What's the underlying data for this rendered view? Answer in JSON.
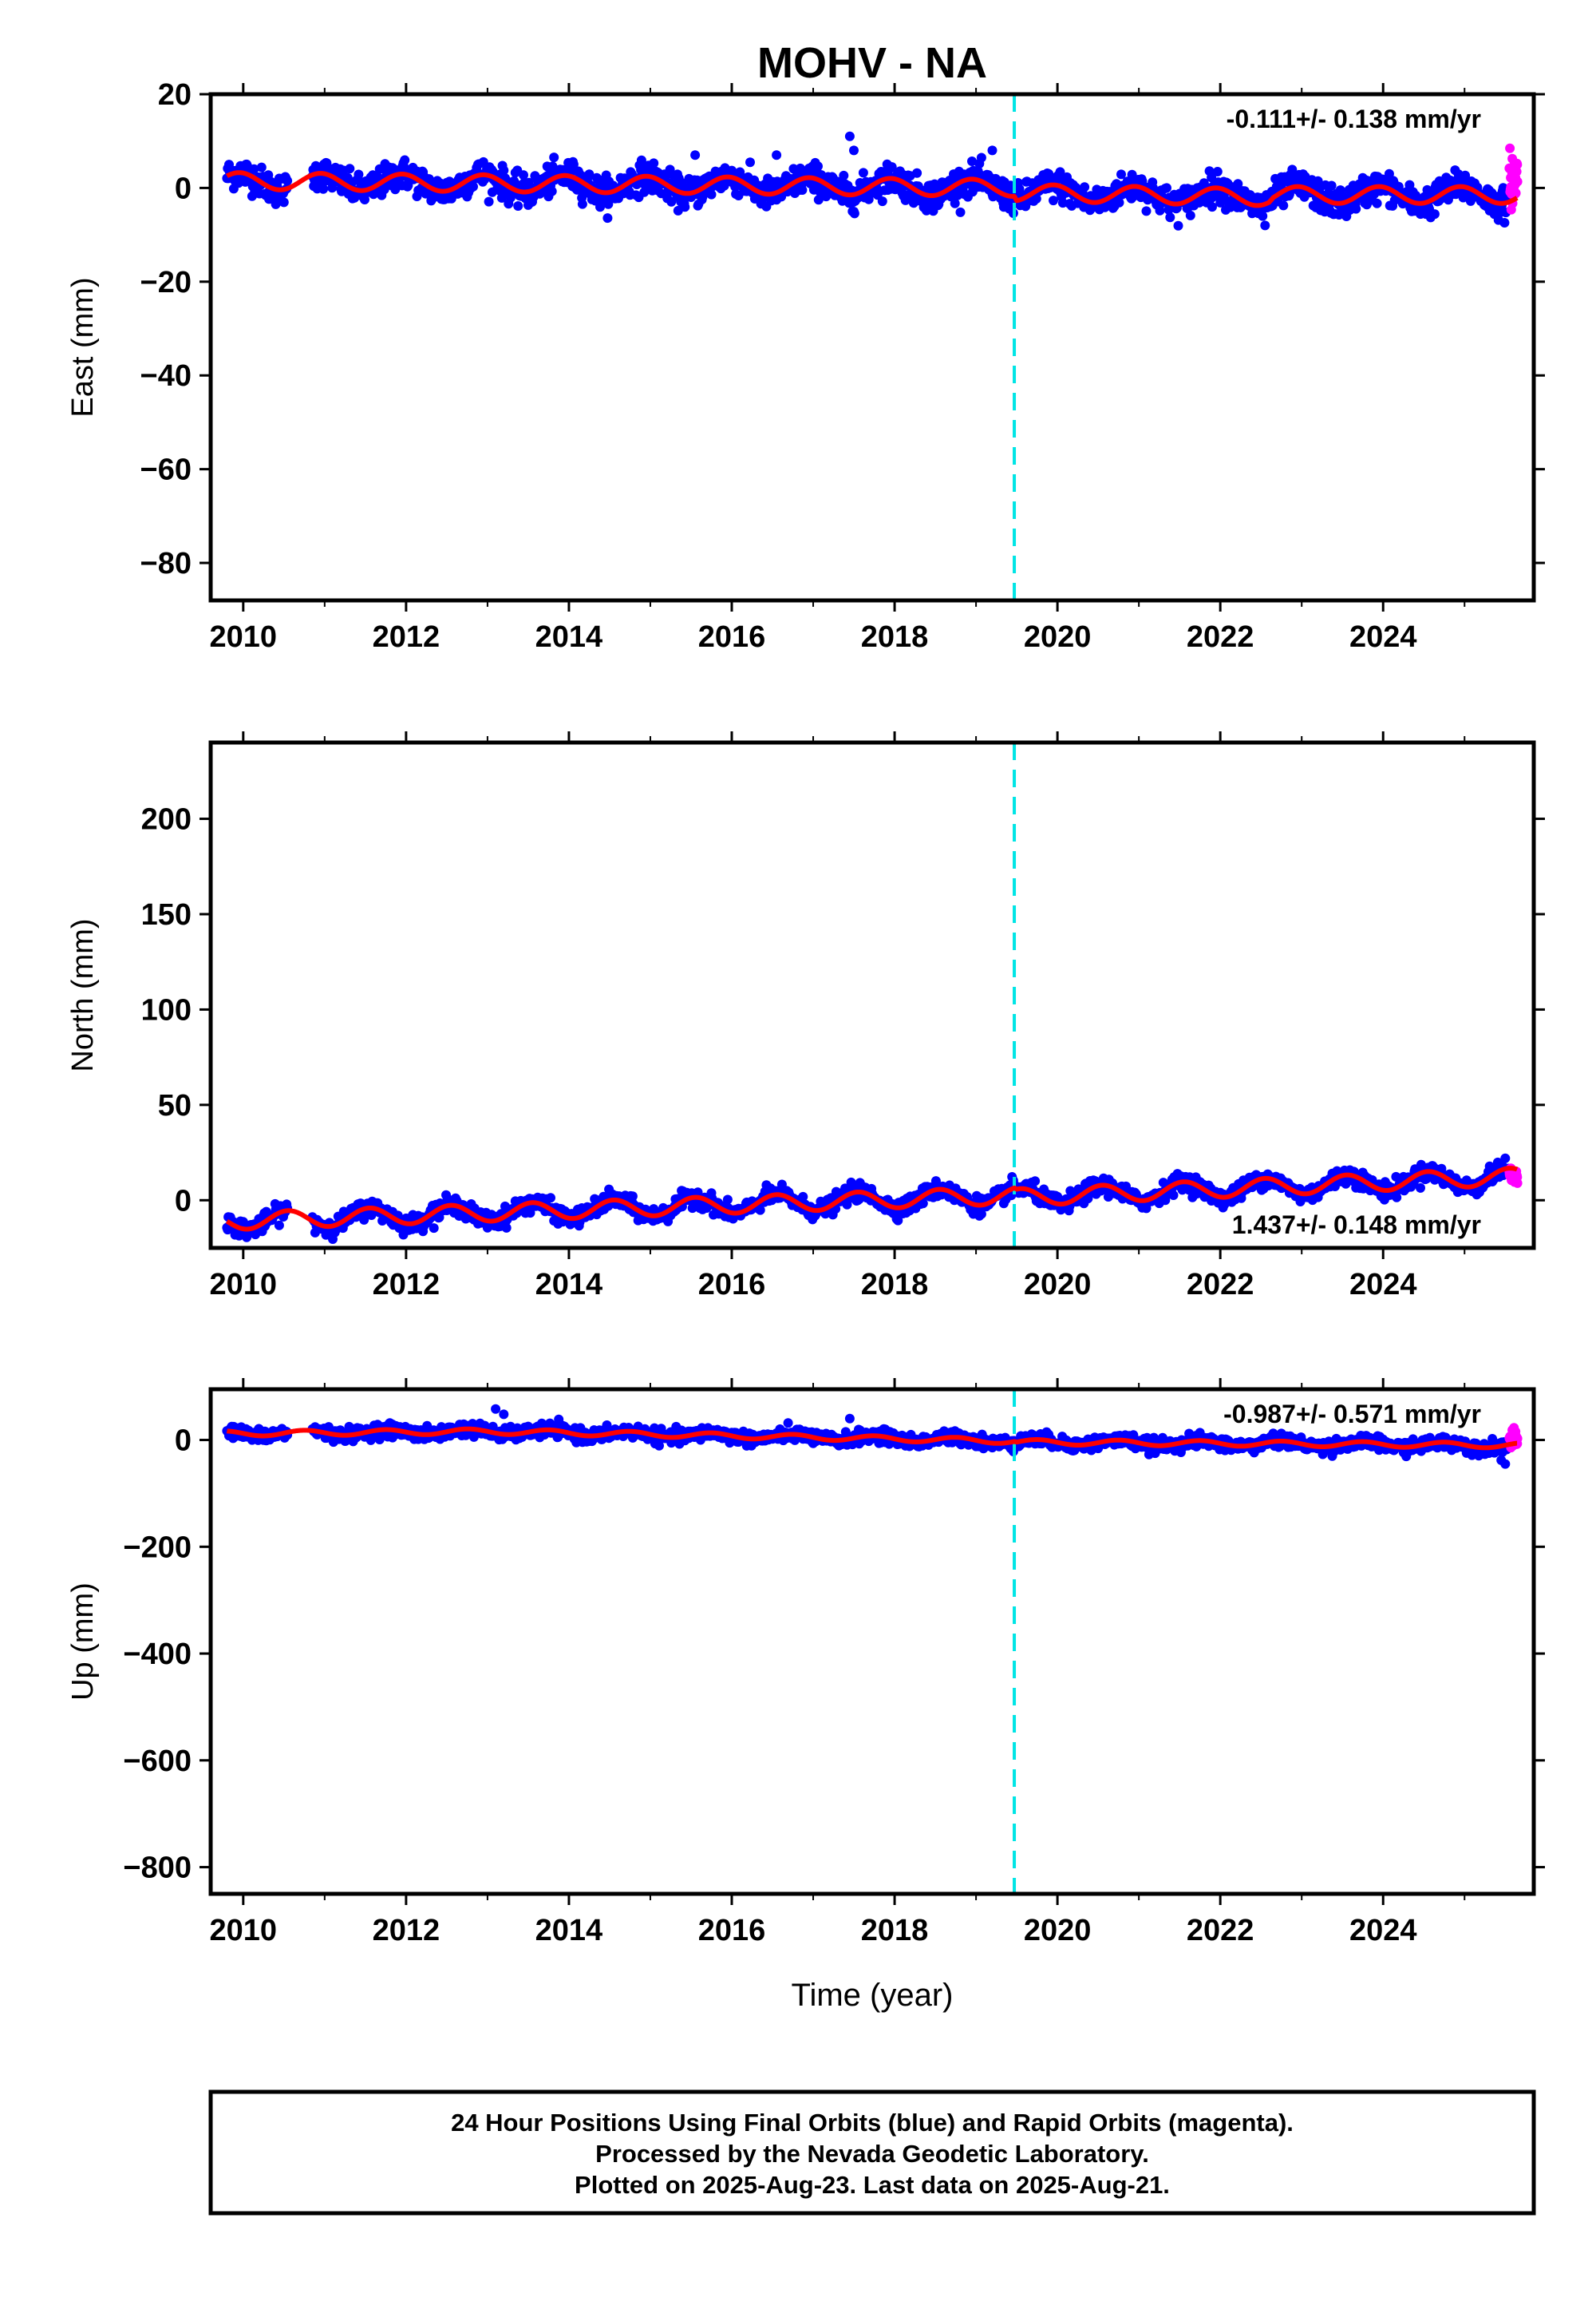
{
  "title": "MOHV - NA",
  "colors": {
    "final_orbits": "#0000ff",
    "rapid_orbits": "#ff00ff",
    "model": "#ff0000",
    "event_line": "#00e5e5",
    "frame": "#000000"
  },
  "chart_data": [
    {
      "type": "scatter",
      "panel": "east",
      "ylabel": "East (mm)",
      "xlabel": "",
      "xlim": [
        2009.6,
        2025.85
      ],
      "ylim": [
        -88,
        20
      ],
      "yticks": [
        20,
        0,
        -20,
        -40,
        -60,
        -80
      ],
      "ytick_labels": [
        "20",
        "0",
        "−20",
        "−40",
        "−60",
        "−80"
      ],
      "xticks": [
        2010,
        2012,
        2014,
        2016,
        2018,
        2020,
        2022,
        2024
      ],
      "xtick_labels": [
        "2010",
        "2012",
        "2014",
        "2016",
        "2018",
        "2020",
        "2022",
        "2024"
      ],
      "show_xtick_labels": true,
      "rate_label": "-0.111+/- 0.138 mm/yr",
      "rate_position": "top-right",
      "event_line_x": 2019.47,
      "series": [
        {
          "role": "final",
          "x_range": [
            2009.8,
            2025.55
          ],
          "trend": [
            [
              2009.8,
              1.5
            ],
            [
              2019.47,
              0.0
            ],
            [
              2019.5,
              -1.0
            ],
            [
              2022.6,
              -2.0
            ],
            [
              2022.65,
              -1.5
            ],
            [
              2025.55,
              -1.5
            ]
          ],
          "annual_amplitude": 1.8,
          "annual_phase": 2009.7,
          "scatter": 1.6
        },
        {
          "role": "rapid",
          "x_range": [
            2025.55,
            2025.65
          ],
          "trend": [
            [
              2025.55,
              2.0
            ],
            [
              2025.65,
              2.0
            ]
          ],
          "annual_amplitude": 0,
          "annual_phase": 2009.7,
          "scatter": 3.0
        },
        {
          "role": "model",
          "x_range": [
            2009.8,
            2025.65
          ],
          "trend": [
            [
              2009.8,
              1.5
            ],
            [
              2019.47,
              0.0
            ],
            [
              2019.5,
              -1.0
            ],
            [
              2022.6,
              -2.0
            ],
            [
              2022.65,
              -1.5
            ],
            [
              2025.65,
              -1.5
            ]
          ],
          "annual_amplitude": 1.8,
          "annual_phase": 2009.7
        }
      ],
      "outliers": [
        [
          2017.45,
          11
        ],
        [
          2017.5,
          8
        ],
        [
          2019.2,
          8
        ],
        [
          2016.55,
          7
        ],
        [
          2015.55,
          7
        ],
        [
          2022.55,
          -8
        ],
        [
          2022.52,
          -6
        ]
      ]
    },
    {
      "type": "scatter",
      "panel": "north",
      "ylabel": "North (mm)",
      "xlabel": "",
      "xlim": [
        2009.6,
        2025.85
      ],
      "ylim": [
        -25,
        240
      ],
      "yticks": [
        200,
        150,
        100,
        50,
        0
      ],
      "ytick_labels": [
        "200",
        "150",
        "100",
        "50",
        "0"
      ],
      "xticks": [
        2010,
        2012,
        2014,
        2016,
        2018,
        2020,
        2022,
        2024
      ],
      "xtick_labels": [
        "2010",
        "2012",
        "2014",
        "2016",
        "2018",
        "2020",
        "2022",
        "2024"
      ],
      "show_xtick_labels": true,
      "rate_label": "1.437+/- 0.148 mm/yr",
      "rate_position": "bottom-right",
      "event_line_x": 2019.47,
      "series": [
        {
          "role": "final",
          "x_range": [
            2009.8,
            2025.55
          ],
          "trend": [
            [
              2009.8,
              -11.0
            ],
            [
              2019.47,
              2.5
            ],
            [
              2019.5,
              1.5
            ],
            [
              2025.55,
              12.0
            ]
          ],
          "annual_amplitude": 4.5,
          "annual_phase": 2009.3,
          "scatter": 2.2
        },
        {
          "role": "rapid",
          "x_range": [
            2025.55,
            2025.65
          ],
          "trend": [
            [
              2025.55,
              13.0
            ],
            [
              2025.65,
              13.0
            ]
          ],
          "annual_amplitude": 0,
          "annual_phase": 2009.3,
          "scatter": 1.5
        },
        {
          "role": "model",
          "x_range": [
            2009.8,
            2025.65
          ],
          "trend": [
            [
              2009.8,
              -11.0
            ],
            [
              2019.47,
              2.5
            ],
            [
              2019.5,
              1.5
            ],
            [
              2025.65,
              12.5
            ]
          ],
          "annual_amplitude": 4.5,
          "annual_phase": 2009.3
        }
      ],
      "outliers": [
        [
          2025.5,
          22
        ],
        [
          2024.6,
          18
        ]
      ]
    },
    {
      "type": "scatter",
      "panel": "up",
      "ylabel": "Up (mm)",
      "xlabel": "Time (year)",
      "xlim": [
        2009.6,
        2025.85
      ],
      "ylim": [
        -850,
        95
      ],
      "yticks": [
        0,
        -200,
        -400,
        -600,
        -800
      ],
      "ytick_labels": [
        "0",
        "−200",
        "−400",
        "−600",
        "−800"
      ],
      "xticks": [
        2010,
        2012,
        2014,
        2016,
        2018,
        2020,
        2022,
        2024
      ],
      "xtick_labels": [
        "2010",
        "2012",
        "2014",
        "2016",
        "2018",
        "2020",
        "2022",
        "2024"
      ],
      "show_xtick_labels": true,
      "rate_label": "-0.987+/- 0.571 mm/yr",
      "rate_position": "top-right",
      "event_line_x": 2019.47,
      "series": [
        {
          "role": "final",
          "x_range": [
            2009.8,
            2025.55
          ],
          "trend": [
            [
              2009.8,
              12.0
            ],
            [
              2013.0,
              16.0
            ],
            [
              2019.47,
              -2.0
            ],
            [
              2019.5,
              -4.0
            ],
            [
              2025.55,
              -10.0
            ]
          ],
          "annual_amplitude": 5.0,
          "annual_phase": 2009.5,
          "scatter": 6.0
        },
        {
          "role": "rapid",
          "x_range": [
            2025.55,
            2025.65
          ],
          "trend": [
            [
              2025.55,
              2.0
            ],
            [
              2025.65,
              2.0
            ]
          ],
          "annual_amplitude": 0,
          "annual_phase": 2009.5,
          "scatter": 8.0
        },
        {
          "role": "model",
          "x_range": [
            2009.8,
            2025.65
          ],
          "trend": [
            [
              2009.8,
              12.0
            ],
            [
              2013.0,
              16.0
            ],
            [
              2019.47,
              -2.0
            ],
            [
              2019.5,
              -4.0
            ],
            [
              2025.65,
              -10.0
            ]
          ],
          "annual_amplitude": 5.0,
          "annual_phase": 2009.5
        }
      ],
      "outliers": [
        [
          2013.1,
          58
        ],
        [
          2013.2,
          48
        ],
        [
          2017.45,
          40
        ],
        [
          2025.5,
          -45
        ],
        [
          2025.45,
          -38
        ]
      ]
    }
  ],
  "caption": {
    "line1": "24 Hour Positions Using Final Orbits (blue) and Rapid Orbits (magenta).",
    "line2": "Processed by the Nevada Geodetic Laboratory.",
    "line3": "Plotted on 2025-Aug-23. Last data on 2025-Aug-21."
  }
}
